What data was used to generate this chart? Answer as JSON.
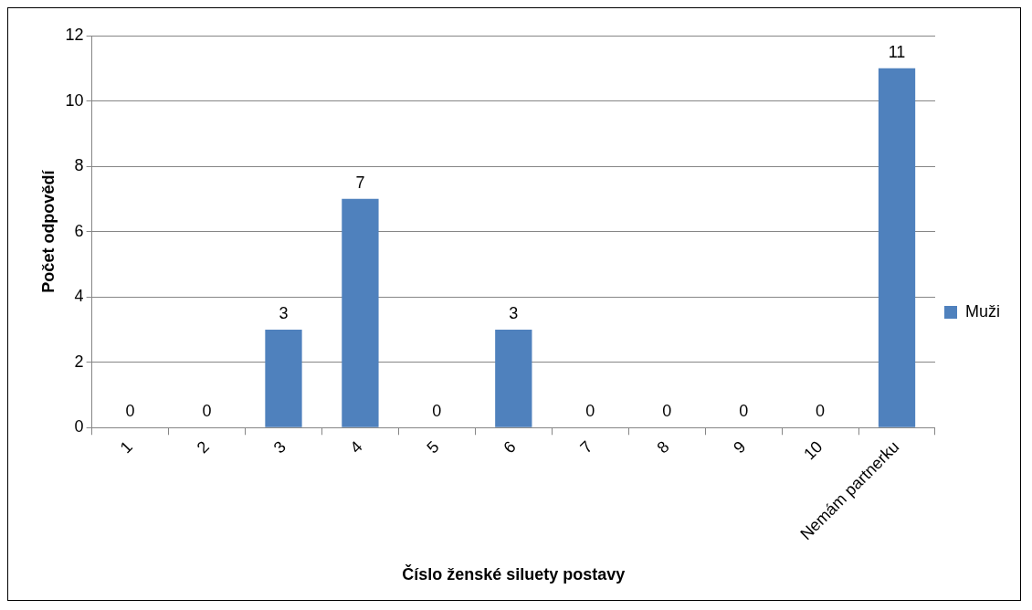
{
  "chart_data": {
    "type": "bar",
    "xlabel": "Číslo ženské siluety postavy",
    "ylabel": "Počet odpovědí",
    "categories": [
      "1",
      "2",
      "3",
      "4",
      "5",
      "6",
      "7",
      "8",
      "9",
      "10",
      "Nemám partnerku"
    ],
    "series": [
      {
        "name": "Muži",
        "color": "#4f81bd",
        "values": [
          0,
          0,
          3,
          7,
          0,
          3,
          0,
          0,
          0,
          0,
          11
        ]
      }
    ],
    "ylim": [
      0,
      12
    ],
    "yticks": [
      0,
      2,
      4,
      6,
      8,
      10,
      12
    ],
    "grid": "y",
    "legend": "right",
    "data_labels": true
  }
}
